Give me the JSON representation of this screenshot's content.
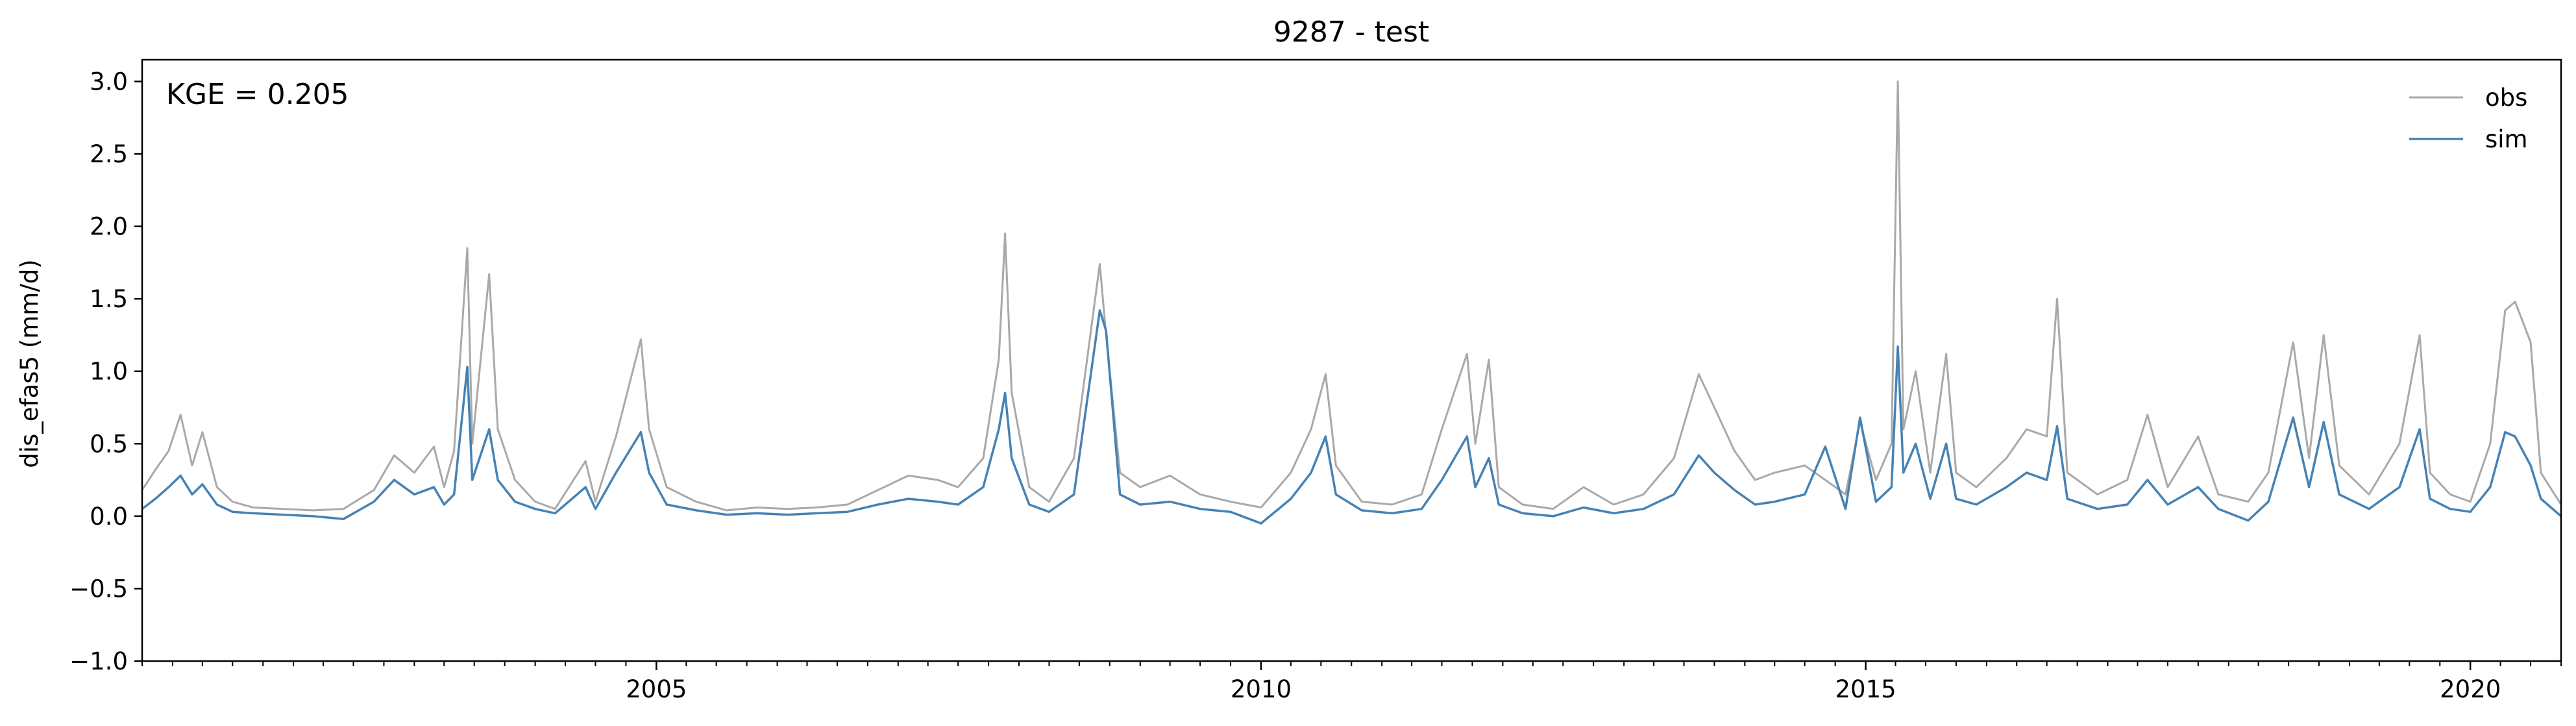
{
  "chart_data": {
    "type": "line",
    "title": "9287 - test",
    "xlabel": "",
    "ylabel": "dis_efas5 (mm/d)",
    "annotation": "KGE = 0.205",
    "legend_position": "top-right",
    "grid": false,
    "xlim": [
      "2000-10-01",
      "2020-10-01"
    ],
    "ylim": [
      -1.0,
      3.15
    ],
    "x_ticks": [
      {
        "value": "2005-01-01",
        "label": "2005"
      },
      {
        "value": "2010-01-01",
        "label": "2010"
      },
      {
        "value": "2015-01-01",
        "label": "2015"
      },
      {
        "value": "2020-01-01",
        "label": "2020"
      }
    ],
    "y_ticks": [
      {
        "value": 3.0,
        "label": "3.0"
      },
      {
        "value": 2.5,
        "label": "2.5"
      },
      {
        "value": 2.0,
        "label": "2.0"
      },
      {
        "value": 1.5,
        "label": "1.5"
      },
      {
        "value": 1.0,
        "label": "1.0"
      },
      {
        "value": 0.5,
        "label": "0.5"
      },
      {
        "value": 0.0,
        "label": "0.0"
      },
      {
        "value": -0.5,
        "label": "−0.5"
      },
      {
        "value": -1.0,
        "label": "−1.0"
      }
    ],
    "series": [
      {
        "name": "obs",
        "color": "#a9a9a9",
        "points": [
          [
            "2000-10-01",
            0.18
          ],
          [
            "2000-11-10",
            0.32
          ],
          [
            "2000-12-20",
            0.45
          ],
          [
            "2001-01-25",
            0.7
          ],
          [
            "2001-03-01",
            0.35
          ],
          [
            "2001-04-01",
            0.58
          ],
          [
            "2001-05-15",
            0.2
          ],
          [
            "2001-07-01",
            0.1
          ],
          [
            "2001-09-01",
            0.06
          ],
          [
            "2001-12-01",
            0.05
          ],
          [
            "2002-03-01",
            0.04
          ],
          [
            "2002-06-01",
            0.05
          ],
          [
            "2002-09-01",
            0.18
          ],
          [
            "2002-11-01",
            0.42
          ],
          [
            "2003-01-01",
            0.3
          ],
          [
            "2003-03-01",
            0.48
          ],
          [
            "2003-04-01",
            0.2
          ],
          [
            "2003-05-01",
            0.45
          ],
          [
            "2003-06-10",
            1.85
          ],
          [
            "2003-06-25",
            0.5
          ],
          [
            "2003-08-15",
            1.67
          ],
          [
            "2003-09-10",
            0.6
          ],
          [
            "2003-11-01",
            0.25
          ],
          [
            "2004-01-01",
            0.1
          ],
          [
            "2004-03-01",
            0.05
          ],
          [
            "2004-06-01",
            0.38
          ],
          [
            "2004-07-01",
            0.1
          ],
          [
            "2004-09-01",
            0.55
          ],
          [
            "2004-11-15",
            1.22
          ],
          [
            "2004-12-10",
            0.6
          ],
          [
            "2005-02-01",
            0.2
          ],
          [
            "2005-05-01",
            0.1
          ],
          [
            "2005-08-01",
            0.04
          ],
          [
            "2005-11-01",
            0.06
          ],
          [
            "2006-02-01",
            0.05
          ],
          [
            "2006-05-01",
            0.06
          ],
          [
            "2006-08-01",
            0.08
          ],
          [
            "2006-11-01",
            0.18
          ],
          [
            "2007-02-01",
            0.28
          ],
          [
            "2007-05-01",
            0.25
          ],
          [
            "2007-07-01",
            0.2
          ],
          [
            "2007-09-15",
            0.4
          ],
          [
            "2007-11-01",
            1.08
          ],
          [
            "2007-11-20",
            1.95
          ],
          [
            "2007-12-10",
            0.85
          ],
          [
            "2008-02-01",
            0.2
          ],
          [
            "2008-04-01",
            0.1
          ],
          [
            "2008-06-15",
            0.4
          ],
          [
            "2008-09-01",
            1.74
          ],
          [
            "2008-09-20",
            1.25
          ],
          [
            "2008-11-01",
            0.3
          ],
          [
            "2009-01-01",
            0.2
          ],
          [
            "2009-04-01",
            0.28
          ],
          [
            "2009-07-01",
            0.15
          ],
          [
            "2009-10-01",
            0.1
          ],
          [
            "2010-01-01",
            0.06
          ],
          [
            "2010-04-01",
            0.3
          ],
          [
            "2010-06-01",
            0.6
          ],
          [
            "2010-07-15",
            0.98
          ],
          [
            "2010-08-15",
            0.35
          ],
          [
            "2010-11-01",
            0.1
          ],
          [
            "2011-02-01",
            0.08
          ],
          [
            "2011-05-01",
            0.15
          ],
          [
            "2011-07-01",
            0.6
          ],
          [
            "2011-09-15",
            1.12
          ],
          [
            "2011-10-10",
            0.5
          ],
          [
            "2011-11-20",
            1.08
          ],
          [
            "2011-12-20",
            0.2
          ],
          [
            "2012-03-01",
            0.08
          ],
          [
            "2012-06-01",
            0.05
          ],
          [
            "2012-09-01",
            0.2
          ],
          [
            "2012-12-01",
            0.08
          ],
          [
            "2013-03-01",
            0.15
          ],
          [
            "2013-06-01",
            0.4
          ],
          [
            "2013-08-15",
            0.98
          ],
          [
            "2013-10-01",
            0.75
          ],
          [
            "2013-12-01",
            0.45
          ],
          [
            "2014-02-01",
            0.25
          ],
          [
            "2014-04-01",
            0.3
          ],
          [
            "2014-07-01",
            0.35
          ],
          [
            "2014-09-01",
            0.25
          ],
          [
            "2014-11-01",
            0.15
          ],
          [
            "2014-12-15",
            0.65
          ],
          [
            "2015-02-01",
            0.25
          ],
          [
            "2015-03-20",
            0.5
          ],
          [
            "2015-04-08",
            3.0
          ],
          [
            "2015-04-25",
            0.6
          ],
          [
            "2015-06-01",
            1.0
          ],
          [
            "2015-07-15",
            0.3
          ],
          [
            "2015-09-01",
            1.12
          ],
          [
            "2015-10-01",
            0.3
          ],
          [
            "2015-12-01",
            0.2
          ],
          [
            "2016-03-01",
            0.4
          ],
          [
            "2016-05-01",
            0.6
          ],
          [
            "2016-07-01",
            0.55
          ],
          [
            "2016-08-01",
            1.5
          ],
          [
            "2016-09-01",
            0.3
          ],
          [
            "2016-12-01",
            0.15
          ],
          [
            "2017-03-01",
            0.25
          ],
          [
            "2017-05-01",
            0.7
          ],
          [
            "2017-07-01",
            0.2
          ],
          [
            "2017-10-01",
            0.55
          ],
          [
            "2017-12-01",
            0.15
          ],
          [
            "2018-03-01",
            0.1
          ],
          [
            "2018-05-01",
            0.3
          ],
          [
            "2018-07-15",
            1.2
          ],
          [
            "2018-09-01",
            0.4
          ],
          [
            "2018-10-15",
            1.25
          ],
          [
            "2018-12-01",
            0.35
          ],
          [
            "2019-03-01",
            0.15
          ],
          [
            "2019-06-01",
            0.5
          ],
          [
            "2019-08-01",
            1.25
          ],
          [
            "2019-09-01",
            0.3
          ],
          [
            "2019-11-01",
            0.15
          ],
          [
            "2020-01-01",
            0.1
          ],
          [
            "2020-03-01",
            0.5
          ],
          [
            "2020-04-15",
            1.42
          ],
          [
            "2020-05-15",
            1.48
          ],
          [
            "2020-07-01",
            1.2
          ],
          [
            "2020-08-01",
            0.3
          ],
          [
            "2020-10-01",
            0.08
          ]
        ]
      },
      {
        "name": "sim",
        "color": "#4682b4",
        "points": [
          [
            "2000-10-01",
            0.05
          ],
          [
            "2000-11-10",
            0.12
          ],
          [
            "2000-12-20",
            0.2
          ],
          [
            "2001-01-25",
            0.28
          ],
          [
            "2001-03-01",
            0.15
          ],
          [
            "2001-04-01",
            0.22
          ],
          [
            "2001-05-15",
            0.08
          ],
          [
            "2001-07-01",
            0.03
          ],
          [
            "2001-09-01",
            0.02
          ],
          [
            "2001-12-01",
            0.01
          ],
          [
            "2002-03-01",
            0.0
          ],
          [
            "2002-06-01",
            -0.02
          ],
          [
            "2002-09-01",
            0.1
          ],
          [
            "2002-11-01",
            0.25
          ],
          [
            "2003-01-01",
            0.15
          ],
          [
            "2003-03-01",
            0.2
          ],
          [
            "2003-04-01",
            0.08
          ],
          [
            "2003-05-01",
            0.15
          ],
          [
            "2003-06-10",
            1.03
          ],
          [
            "2003-06-25",
            0.25
          ],
          [
            "2003-08-15",
            0.6
          ],
          [
            "2003-09-10",
            0.25
          ],
          [
            "2003-11-01",
            0.1
          ],
          [
            "2004-01-01",
            0.05
          ],
          [
            "2004-03-01",
            0.02
          ],
          [
            "2004-06-01",
            0.2
          ],
          [
            "2004-07-01",
            0.05
          ],
          [
            "2004-09-01",
            0.3
          ],
          [
            "2004-11-15",
            0.58
          ],
          [
            "2004-12-10",
            0.3
          ],
          [
            "2005-02-01",
            0.08
          ],
          [
            "2005-05-01",
            0.04
          ],
          [
            "2005-08-01",
            0.01
          ],
          [
            "2005-11-01",
            0.02
          ],
          [
            "2006-02-01",
            0.01
          ],
          [
            "2006-05-01",
            0.02
          ],
          [
            "2006-08-01",
            0.03
          ],
          [
            "2006-11-01",
            0.08
          ],
          [
            "2007-02-01",
            0.12
          ],
          [
            "2007-05-01",
            0.1
          ],
          [
            "2007-07-01",
            0.08
          ],
          [
            "2007-09-15",
            0.2
          ],
          [
            "2007-11-01",
            0.6
          ],
          [
            "2007-11-20",
            0.85
          ],
          [
            "2007-12-10",
            0.4
          ],
          [
            "2008-02-01",
            0.08
          ],
          [
            "2008-04-01",
            0.03
          ],
          [
            "2008-06-15",
            0.15
          ],
          [
            "2008-09-01",
            1.42
          ],
          [
            "2008-09-20",
            1.28
          ],
          [
            "2008-11-01",
            0.15
          ],
          [
            "2009-01-01",
            0.08
          ],
          [
            "2009-04-01",
            0.1
          ],
          [
            "2009-07-01",
            0.05
          ],
          [
            "2009-10-01",
            0.03
          ],
          [
            "2010-01-01",
            -0.05
          ],
          [
            "2010-04-01",
            0.12
          ],
          [
            "2010-06-01",
            0.3
          ],
          [
            "2010-07-15",
            0.55
          ],
          [
            "2010-08-15",
            0.15
          ],
          [
            "2010-11-01",
            0.04
          ],
          [
            "2011-02-01",
            0.02
          ],
          [
            "2011-05-01",
            0.05
          ],
          [
            "2011-07-01",
            0.25
          ],
          [
            "2011-09-15",
            0.55
          ],
          [
            "2011-10-10",
            0.2
          ],
          [
            "2011-11-20",
            0.4
          ],
          [
            "2011-12-20",
            0.08
          ],
          [
            "2012-03-01",
            0.02
          ],
          [
            "2012-06-01",
            0.0
          ],
          [
            "2012-09-01",
            0.06
          ],
          [
            "2012-12-01",
            0.02
          ],
          [
            "2013-03-01",
            0.05
          ],
          [
            "2013-06-01",
            0.15
          ],
          [
            "2013-08-15",
            0.42
          ],
          [
            "2013-10-01",
            0.3
          ],
          [
            "2013-12-01",
            0.18
          ],
          [
            "2014-02-01",
            0.08
          ],
          [
            "2014-04-01",
            0.1
          ],
          [
            "2014-07-01",
            0.15
          ],
          [
            "2014-09-01",
            0.48
          ],
          [
            "2014-11-01",
            0.05
          ],
          [
            "2014-12-15",
            0.68
          ],
          [
            "2015-02-01",
            0.1
          ],
          [
            "2015-03-20",
            0.2
          ],
          [
            "2015-04-08",
            1.17
          ],
          [
            "2015-04-25",
            0.3
          ],
          [
            "2015-06-01",
            0.5
          ],
          [
            "2015-07-15",
            0.12
          ],
          [
            "2015-09-01",
            0.5
          ],
          [
            "2015-10-01",
            0.12
          ],
          [
            "2015-12-01",
            0.08
          ],
          [
            "2016-03-01",
            0.2
          ],
          [
            "2016-05-01",
            0.3
          ],
          [
            "2016-07-01",
            0.25
          ],
          [
            "2016-08-01",
            0.62
          ],
          [
            "2016-09-01",
            0.12
          ],
          [
            "2016-12-01",
            0.05
          ],
          [
            "2017-03-01",
            0.08
          ],
          [
            "2017-05-01",
            0.25
          ],
          [
            "2017-07-01",
            0.08
          ],
          [
            "2017-10-01",
            0.2
          ],
          [
            "2017-12-01",
            0.05
          ],
          [
            "2018-03-01",
            -0.03
          ],
          [
            "2018-05-01",
            0.1
          ],
          [
            "2018-07-15",
            0.68
          ],
          [
            "2018-09-01",
            0.2
          ],
          [
            "2018-10-15",
            0.65
          ],
          [
            "2018-12-01",
            0.15
          ],
          [
            "2019-03-01",
            0.05
          ],
          [
            "2019-06-01",
            0.2
          ],
          [
            "2019-08-01",
            0.6
          ],
          [
            "2019-09-01",
            0.12
          ],
          [
            "2019-11-01",
            0.05
          ],
          [
            "2020-01-01",
            0.03
          ],
          [
            "2020-03-01",
            0.2
          ],
          [
            "2020-04-15",
            0.58
          ],
          [
            "2020-05-15",
            0.55
          ],
          [
            "2020-07-01",
            0.35
          ],
          [
            "2020-08-01",
            0.12
          ],
          [
            "2020-10-01",
            0.0
          ]
        ]
      }
    ]
  }
}
